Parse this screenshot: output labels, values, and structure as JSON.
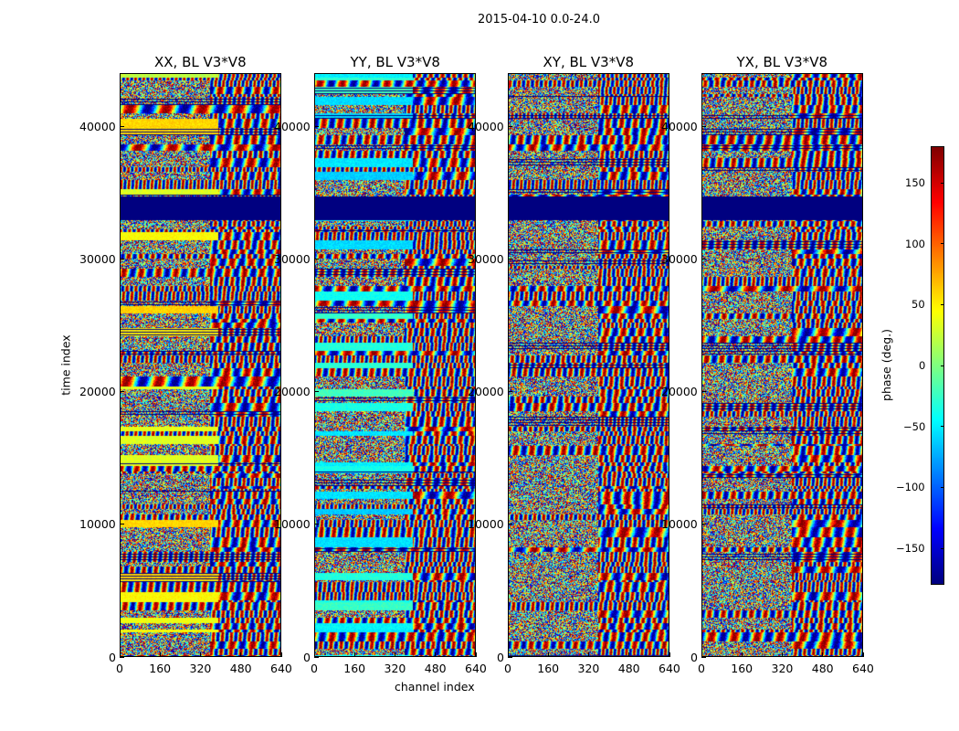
{
  "chart_data": {
    "type": "heatmap",
    "suptitle": "2015-04-10 0.0-24.0",
    "xlabel": "channel index",
    "ylabel": "time index",
    "panels": [
      {
        "title": "XX, BL V3*V8",
        "pol": "XX"
      },
      {
        "title": "YY, BL V3*V8",
        "pol": "YY"
      },
      {
        "title": "XY, BL V3*V8",
        "pol": "XY"
      },
      {
        "title": "YX, BL V3*V8",
        "pol": "YX"
      }
    ],
    "xlim": [
      0,
      640
    ],
    "ylim": [
      0,
      44000
    ],
    "xticks": [
      0,
      160,
      320,
      480,
      640
    ],
    "yticks": [
      0,
      10000,
      20000,
      30000,
      40000
    ],
    "flagged_block": [
      33000,
      34800
    ],
    "colorbar": {
      "label": "phase (deg.)",
      "range": [
        -180,
        180
      ],
      "ticks": [
        150,
        100,
        50,
        0,
        -50,
        -100,
        -150
      ],
      "tick_labels": [
        "150",
        "100",
        "50",
        "0",
        "−50",
        "−100",
        "−150"
      ],
      "colormap": "jet"
    }
  }
}
